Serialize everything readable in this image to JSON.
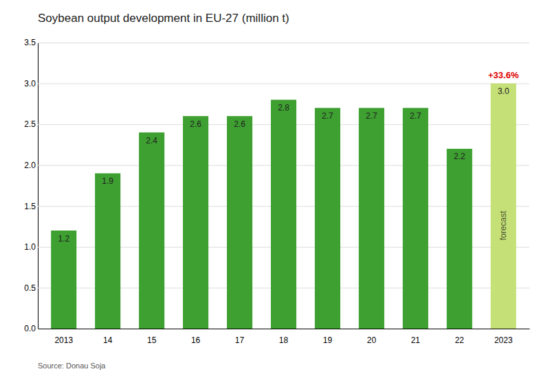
{
  "chart_data": {
    "type": "bar",
    "title": "Soybean output development in EU-27 (million t)",
    "categories": [
      "2013",
      "14",
      "15",
      "16",
      "17",
      "18",
      "19",
      "20",
      "21",
      "22",
      "2023"
    ],
    "values": [
      1.2,
      1.9,
      2.4,
      2.6,
      2.6,
      2.8,
      2.7,
      2.7,
      2.7,
      2.2,
      3.0
    ],
    "value_labels": [
      "1.2",
      "1.9",
      "2.4",
      "2.6",
      "2.6",
      "2.8",
      "2.7",
      "2.7",
      "2.7",
      "2.2",
      "3.0"
    ],
    "data_labels": true,
    "colors": [
      "#3da030",
      "#3da030",
      "#3da030",
      "#3da030",
      "#3da030",
      "#3da030",
      "#3da030",
      "#3da030",
      "#3da030",
      "#3da030",
      "#c5e077"
    ],
    "ylim": [
      0,
      3.5
    ],
    "yticks": [
      {
        "value": 0,
        "label": "0.0"
      },
      0.5,
      {
        "value": 1,
        "label": "1.0"
      },
      1.5,
      {
        "value": 2,
        "label": "2.0"
      },
      2.5,
      {
        "value": 3,
        "label": "3.0"
      },
      3.5
    ],
    "grid": true,
    "annotations": [
      {
        "text": "forecast"
      },
      {
        "text": "+33.6%",
        "color": "#dd0000"
      }
    ],
    "source": "Source: Donau Soja"
  }
}
